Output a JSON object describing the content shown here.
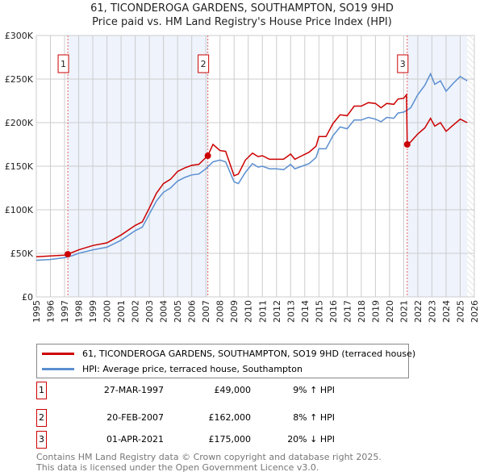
{
  "title": "61, TICONDEROGA GARDENS, SOUTHAMPTON, SO19 9HD",
  "subtitle": "Price paid vs. HM Land Registry's House Price Index (HPI)",
  "colors": {
    "property": "#cc0000",
    "hpi": "#5b8fd0",
    "shade": "#eef3fc"
  },
  "chart_data": {
    "type": "line",
    "title": "61, TICONDEROGA GARDENS, SOUTHAMPTON, SO19 9HD",
    "xlim": [
      1995,
      2026
    ],
    "ylim": [
      0,
      300000
    ],
    "x_ticks": [
      "1995",
      "1996",
      "1997",
      "1998",
      "1999",
      "2000",
      "2001",
      "2002",
      "2003",
      "2004",
      "2005",
      "2006",
      "2007",
      "2008",
      "2009",
      "2010",
      "2011",
      "2012",
      "2013",
      "2014",
      "2015",
      "2016",
      "2017",
      "2018",
      "2019",
      "2020",
      "2021",
      "2022",
      "2023",
      "2024",
      "2025",
      "2026"
    ],
    "y_ticks": [
      {
        "v": 0,
        "label": "£0"
      },
      {
        "v": 50000,
        "label": "£50K"
      },
      {
        "v": 100000,
        "label": "£100K"
      },
      {
        "v": 150000,
        "label": "£150K"
      },
      {
        "v": 200000,
        "label": "£200K"
      },
      {
        "v": 250000,
        "label": "£250K"
      },
      {
        "v": 300000,
        "label": "£300K"
      }
    ],
    "series": [
      {
        "name": "61, TICONDEROGA GARDENS, SOUTHAMPTON, SO19 9HD (terraced house)",
        "color": "#cc0000",
        "x": [
          1995,
          1996,
          1997,
          1997.23,
          1998,
          1999,
          2000,
          2001,
          2002,
          2002.5,
          2003,
          2003.5,
          2004,
          2004.5,
          2005,
          2005.5,
          2006,
          2006.5,
          2007.14,
          2007.5,
          2008,
          2008.4,
          2009,
          2009.3,
          2009.8,
          2010.3,
          2010.7,
          2011,
          2011.5,
          2012,
          2012.5,
          2013,
          2013.3,
          2013.8,
          2014.3,
          2014.8,
          2015,
          2015.5,
          2016,
          2016.5,
          2017,
          2017.5,
          2018,
          2018.5,
          2019,
          2019.4,
          2019.8,
          2020.3,
          2020.6,
          2021,
          2021.2,
          2021.25,
          2021.5,
          2022,
          2022.5,
          2022.9,
          2023.2,
          2023.6,
          2024,
          2024.5,
          2025,
          2025.5
        ],
        "y": [
          46000,
          47000,
          48000,
          49000,
          54000,
          59000,
          62000,
          71000,
          82000,
          86000,
          102000,
          119000,
          130000,
          135000,
          144000,
          148000,
          151000,
          152000,
          162000,
          175000,
          168000,
          167000,
          139000,
          141000,
          157000,
          165000,
          161000,
          162000,
          158000,
          158000,
          158000,
          164000,
          158000,
          162000,
          166000,
          173000,
          184000,
          184000,
          199000,
          209000,
          208000,
          219000,
          219000,
          223000,
          222000,
          217000,
          222000,
          221000,
          227000,
          228000,
          232000,
          175000,
          178000,
          187000,
          194000,
          205000,
          196000,
          200000,
          190000,
          197000,
          204000,
          200000
        ]
      },
      {
        "name": "HPI: Average price, terraced house, Southampton",
        "color": "#5b8fd0",
        "x": [
          1995,
          1996,
          1997,
          1997.5,
          1998,
          1999,
          2000,
          2001,
          2002,
          2002.5,
          2003,
          2003.5,
          2004,
          2004.5,
          2005,
          2005.5,
          2006,
          2006.5,
          2007,
          2007.5,
          2008,
          2008.4,
          2009,
          2009.3,
          2009.8,
          2010.3,
          2010.7,
          2011,
          2011.5,
          2012,
          2012.5,
          2013,
          2013.3,
          2013.8,
          2014.3,
          2014.8,
          2015,
          2015.5,
          2016,
          2016.5,
          2017,
          2017.5,
          2018,
          2018.5,
          2019,
          2019.4,
          2019.8,
          2020.3,
          2020.6,
          2021,
          2021.5,
          2022,
          2022.5,
          2022.9,
          2023.2,
          2023.6,
          2024,
          2024.5,
          2025,
          2025.5
        ],
        "y": [
          42000,
          43000,
          45000,
          47000,
          50000,
          54000,
          57000,
          65000,
          76000,
          80000,
          95000,
          110000,
          120000,
          125000,
          133000,
          137000,
          140000,
          141000,
          147000,
          155000,
          157000,
          155000,
          132000,
          130000,
          143000,
          153000,
          149000,
          150000,
          147000,
          147000,
          146000,
          152000,
          147000,
          150000,
          153000,
          160000,
          170000,
          170000,
          185000,
          195000,
          193000,
          203000,
          203000,
          206000,
          204000,
          201000,
          206000,
          205000,
          211000,
          212000,
          217000,
          232000,
          243000,
          256000,
          244000,
          248000,
          236000,
          245000,
          253000,
          248000
        ]
      }
    ],
    "sales": [
      {
        "label": "1",
        "x": 1997.23,
        "y": 49000
      },
      {
        "label": "2",
        "x": 2007.14,
        "y": 162000
      },
      {
        "label": "3",
        "x": 2021.25,
        "y": 175000
      }
    ],
    "shaded": [
      [
        1997.23,
        2007.14
      ],
      [
        2021.25,
        2025.5
      ]
    ],
    "hatched": [
      2025.5,
      2026
    ],
    "legend": "bottom"
  },
  "legend": {
    "property": "61, TICONDEROGA GARDENS, SOUTHAMPTON, SO19 9HD (terraced house)",
    "hpi": "HPI: Average price, terraced house, Southampton"
  },
  "transactions": [
    {
      "num": "1",
      "date": "27-MAR-1997",
      "price": "£49,000",
      "hpi": "9% ↑ HPI"
    },
    {
      "num": "2",
      "date": "20-FEB-2007",
      "price": "£162,000",
      "hpi": "8% ↑ HPI"
    },
    {
      "num": "3",
      "date": "01-APR-2021",
      "price": "£175,000",
      "hpi": "20% ↓ HPI"
    }
  ],
  "footer": {
    "line1": "Contains HM Land Registry data © Crown copyright and database right 2025.",
    "line2": "This data is licensed under the Open Government Licence v3.0."
  }
}
